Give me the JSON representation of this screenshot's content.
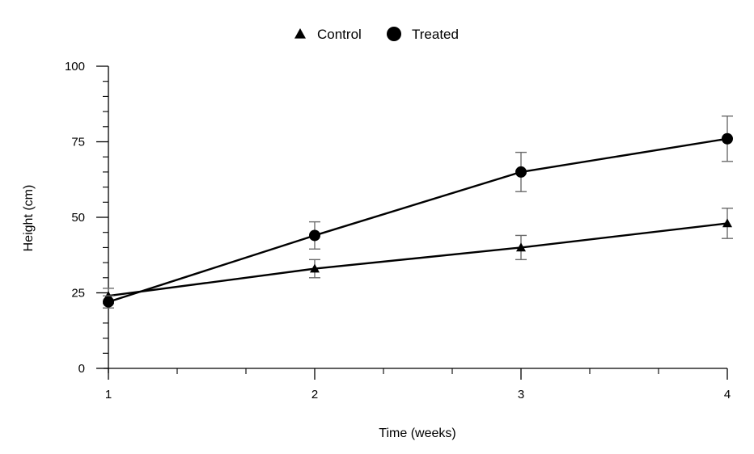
{
  "chart_data": {
    "type": "line",
    "title": "",
    "xlabel": "Time (weeks)",
    "ylabel": "Height (cm)",
    "x": [
      1,
      2,
      3,
      4
    ],
    "xlim": [
      1,
      4
    ],
    "ylim": [
      0,
      100
    ],
    "x_ticks": [
      1,
      2,
      3,
      4
    ],
    "x_tick_labels": [
      "1",
      "2",
      "3",
      "4"
    ],
    "y_ticks": [
      0,
      25,
      50,
      75,
      100
    ],
    "y_tick_labels": [
      "0",
      "25",
      "50",
      "75",
      "100"
    ],
    "grid": false,
    "legend_position": "top-center",
    "series": [
      {
        "name": "Control",
        "marker": "triangle",
        "color": "#000000",
        "values": [
          24,
          33,
          40,
          48
        ],
        "error": [
          2.5,
          3,
          4,
          5
        ]
      },
      {
        "name": "Treated",
        "marker": "circle",
        "color": "#000000",
        "values": [
          22,
          44,
          65,
          76
        ],
        "error": [
          2,
          4.5,
          6.5,
          7.5
        ]
      }
    ],
    "errorbar_color": "#6b6b6b"
  }
}
